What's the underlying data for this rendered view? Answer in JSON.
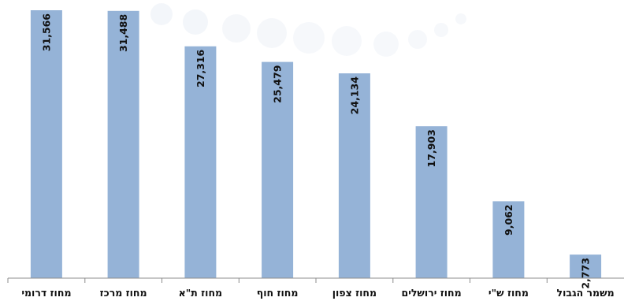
{
  "chart_data": {
    "type": "bar",
    "categories": [
      "מחוז דרומי",
      "מחוז מרכז",
      "מחוז ת\"א",
      "מחוז חוף",
      "מחוז צפון",
      "מחוז ירושלים",
      "מחוז ש\"י",
      "משמר הגבול"
    ],
    "values": [
      31566,
      31488,
      27316,
      25479,
      24134,
      17903,
      9062,
      2773
    ],
    "value_labels": [
      "31,566",
      "31,488",
      "27,316",
      "25,479",
      "24,134",
      "17,903",
      "9,062",
      "2,773"
    ],
    "title": "",
    "xlabel": "",
    "ylabel": "",
    "ylim": [
      0,
      32000
    ],
    "grid": false,
    "legend": "none",
    "bar_color": "#95b3d7"
  }
}
